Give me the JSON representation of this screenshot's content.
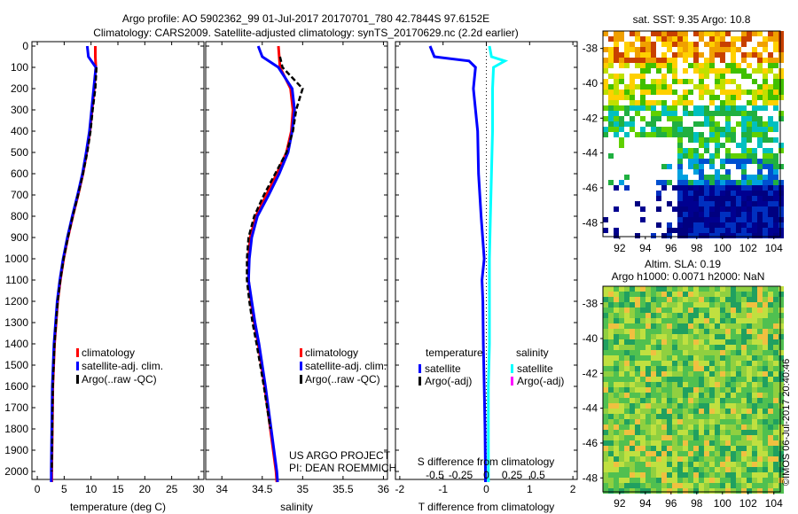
{
  "title_line1": "Argo profile: AO 5902362_99 01-Jul-2017 20170701_780 42.7844S 97.6152E",
  "title_line2": "Climatology: CARS2009. Satellite-adjusted climatology: synTS_20170629.nc (2.2d earlier)",
  "colors": {
    "climatology": "#ff0000",
    "satellite": "#0000ff",
    "argo": "#000000",
    "sal_satellite": "#00ffff",
    "sal_argo": "#ff00ff"
  },
  "depth_ticks": [
    "0",
    "100",
    "200",
    "300",
    "400",
    "500",
    "600",
    "700",
    "800",
    "900",
    "1000",
    "1100",
    "1200",
    "1300",
    "1400",
    "1500",
    "1600",
    "1700",
    "1800",
    "1900",
    "2000"
  ],
  "chart_data": [
    {
      "type": "line",
      "xlabel": "temperature (deg C)",
      "xlim": [
        -1,
        31
      ],
      "ylim": [
        2060,
        0
      ],
      "xticks": [
        "0",
        "5",
        "10",
        "15",
        "20",
        "25",
        "30"
      ],
      "legend": [
        "climatology",
        "satellite-adj. clim.",
        "Argo(..raw -QC)"
      ],
      "depth": [
        0,
        50,
        100,
        200,
        300,
        400,
        500,
        600,
        700,
        800,
        900,
        1000,
        1100,
        1200,
        1300,
        1400,
        1600,
        1800,
        2000,
        2050
      ],
      "series": [
        {
          "name": "climatology",
          "values": [
            10.8,
            10.8,
            10.9,
            10.6,
            10.2,
            9.8,
            9.2,
            8.5,
            7.6,
            6.6,
            5.7,
            4.9,
            4.3,
            3.8,
            3.5,
            3.2,
            2.9,
            2.8,
            2.7,
            2.7
          ]
        },
        {
          "name": "satellite-adj. clim.",
          "values": [
            9.3,
            9.5,
            10.9,
            10.5,
            10.1,
            9.7,
            9.1,
            8.4,
            7.5,
            6.5,
            5.6,
            4.8,
            4.2,
            3.7,
            3.4,
            3.1,
            2.8,
            2.7,
            2.6,
            2.6
          ]
        },
        {
          "name": "Argo(..raw -QC)",
          "values": [
            null,
            null,
            11.0,
            10.8,
            10.3,
            9.9,
            9.3,
            8.5,
            7.6,
            6.6,
            5.7,
            4.9,
            4.3,
            3.8,
            3.5,
            3.2,
            2.9,
            2.8,
            2.7,
            null
          ]
        }
      ]
    },
    {
      "type": "line",
      "xlabel": "salinity",
      "xlim": [
        33.8,
        36.05
      ],
      "ylim": [
        2060,
        0
      ],
      "xticks": [
        "34",
        "34.5",
        "35",
        "35.5",
        "36"
      ],
      "legend": [
        "climatology",
        "satellite-adj. clim.",
        " Argo(..raw -QC)"
      ],
      "annotations": [
        "US ARGO PROJECT",
        "PI: DEAN ROEMMICH"
      ],
      "depth": [
        0,
        50,
        100,
        200,
        300,
        400,
        500,
        600,
        700,
        800,
        900,
        1000,
        1100,
        1200,
        1300,
        1400,
        1600,
        1800,
        2000,
        2050
      ],
      "series": [
        {
          "name": "climatology",
          "values": [
            34.7,
            34.71,
            34.72,
            34.85,
            34.88,
            34.86,
            34.8,
            34.68,
            34.55,
            34.42,
            34.35,
            34.33,
            34.33,
            34.36,
            34.4,
            34.45,
            34.53,
            34.6,
            34.67,
            34.68
          ]
        },
        {
          "name": "satellite-adj. clim.",
          "values": [
            34.45,
            34.5,
            34.7,
            34.87,
            34.9,
            34.87,
            34.82,
            34.71,
            34.58,
            34.44,
            34.37,
            34.34,
            34.33,
            34.37,
            34.41,
            34.46,
            34.54,
            34.61,
            34.68,
            34.69
          ]
        },
        {
          "name": "Argo(..raw -QC)",
          "values": [
            null,
            34.72,
            34.75,
            35.0,
            34.92,
            34.88,
            34.8,
            34.66,
            34.52,
            34.4,
            34.33,
            34.31,
            34.31,
            34.34,
            34.38,
            34.43,
            34.52,
            34.6,
            null,
            null
          ]
        }
      ]
    },
    {
      "type": "line",
      "xlabel": "T difference from climatology",
      "xlabel2": "S difference from climatology",
      "xlim": [
        -2.1,
        2.1
      ],
      "ylim": [
        2060,
        0
      ],
      "xticks": [
        "-2",
        "-1",
        "0",
        "1",
        "2"
      ],
      "xticks2": [
        "-0.5",
        "-0.25",
        "0",
        "0.25",
        "0.5"
      ],
      "legend_titles": [
        "temperature",
        "salinity"
      ],
      "legend": [
        "satellite",
        "Argo(-adj)",
        "satellite",
        "Argo(-adj)"
      ],
      "depth": [
        0,
        50,
        70,
        100,
        200,
        300,
        400,
        600,
        800,
        1000,
        1100,
        1200,
        1400,
        1600,
        1800,
        2000,
        2050
      ],
      "series": [
        {
          "name": "T satellite",
          "values": [
            -1.3,
            -1.2,
            -0.4,
            -0.25,
            -0.3,
            -0.25,
            -0.2,
            -0.18,
            -0.12,
            -0.05,
            -0.1,
            -0.08,
            -0.07,
            -0.05,
            -0.03,
            -0.02,
            -0.02
          ]
        },
        {
          "name": "S satellite",
          "values": [
            0.03,
            0.05,
            0.18,
            0.07,
            0.06,
            0.06,
            0.06,
            0.05,
            0.04,
            0.03,
            0.03,
            0.03,
            0.03,
            0.02,
            0.02,
            0.02,
            0.02
          ]
        }
      ]
    }
  ],
  "map1": {
    "title": "sat. SST: 9.35 Argo: 10.8",
    "yticks": [
      "-38",
      "-40",
      "-42",
      "-44",
      "-46",
      "-48"
    ],
    "xticks": [
      "92",
      "94",
      "96",
      "98",
      "100",
      "102",
      "104"
    ]
  },
  "map2": {
    "title1": "Altim. SLA: 0.19",
    "title2": "Argo h1000: 0.0071 h2000: NaN",
    "yticks": [
      "-38",
      "-40",
      "-42",
      "-44",
      "-46",
      "-48"
    ],
    "xticks": [
      "92",
      "94",
      "96",
      "98",
      "100",
      "102",
      "104"
    ]
  },
  "credit": "©IMOS 06-Jul-2017 20:40:46"
}
